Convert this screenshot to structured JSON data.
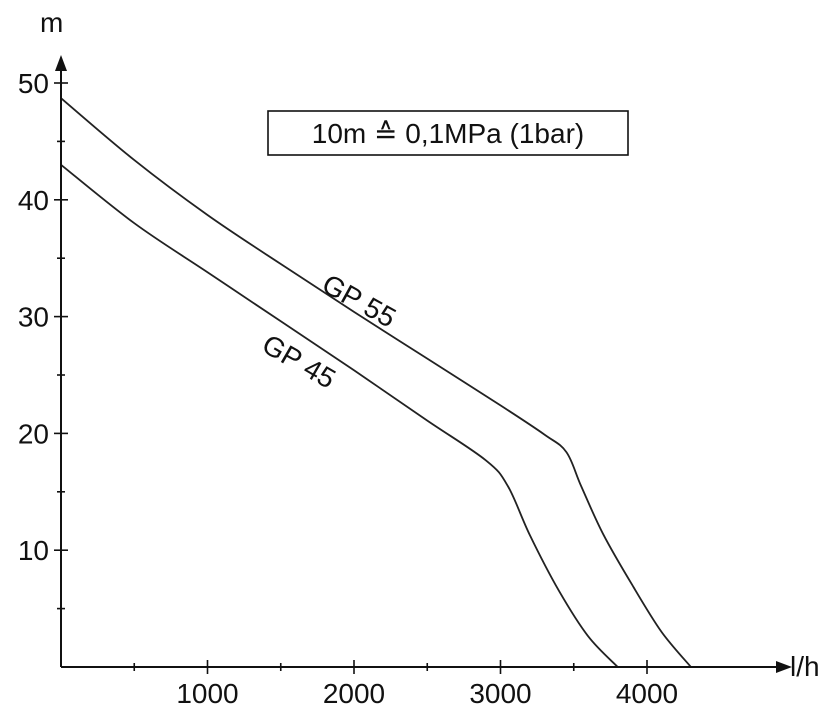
{
  "chart_data": {
    "type": "line",
    "xlabel": "l/h",
    "ylabel": "m",
    "xlim": [
      0,
      4500
    ],
    "ylim": [
      0,
      50
    ],
    "x_ticks": [
      1000,
      2000,
      3000,
      4000
    ],
    "x_minor_ticks": [
      500,
      1500,
      2500,
      3500
    ],
    "y_ticks": [
      10,
      20,
      30,
      40,
      50
    ],
    "y_minor_ticks": [
      5,
      15,
      25,
      35,
      45
    ],
    "annotation": "10m ≙ 0,1MPa (1bar)",
    "grid": false,
    "series": [
      {
        "name": "GP 55",
        "x": [
          0,
          500,
          1000,
          1500,
          2000,
          2500,
          3000,
          3300,
          3450,
          3550,
          3700,
          3900,
          4100,
          4300
        ],
        "y": [
          48.7,
          43.4,
          38.7,
          34.5,
          30.4,
          26.4,
          22.4,
          19.9,
          18.4,
          15.5,
          11.4,
          7.0,
          3.0,
          0
        ]
      },
      {
        "name": "GP 45",
        "x": [
          0,
          500,
          1000,
          1500,
          2000,
          2500,
          2900,
          3050,
          3200,
          3400,
          3600,
          3800
        ],
        "y": [
          43.0,
          38.0,
          33.8,
          29.6,
          25.4,
          21.1,
          17.7,
          15.5,
          11.3,
          6.5,
          2.6,
          0
        ]
      }
    ]
  }
}
